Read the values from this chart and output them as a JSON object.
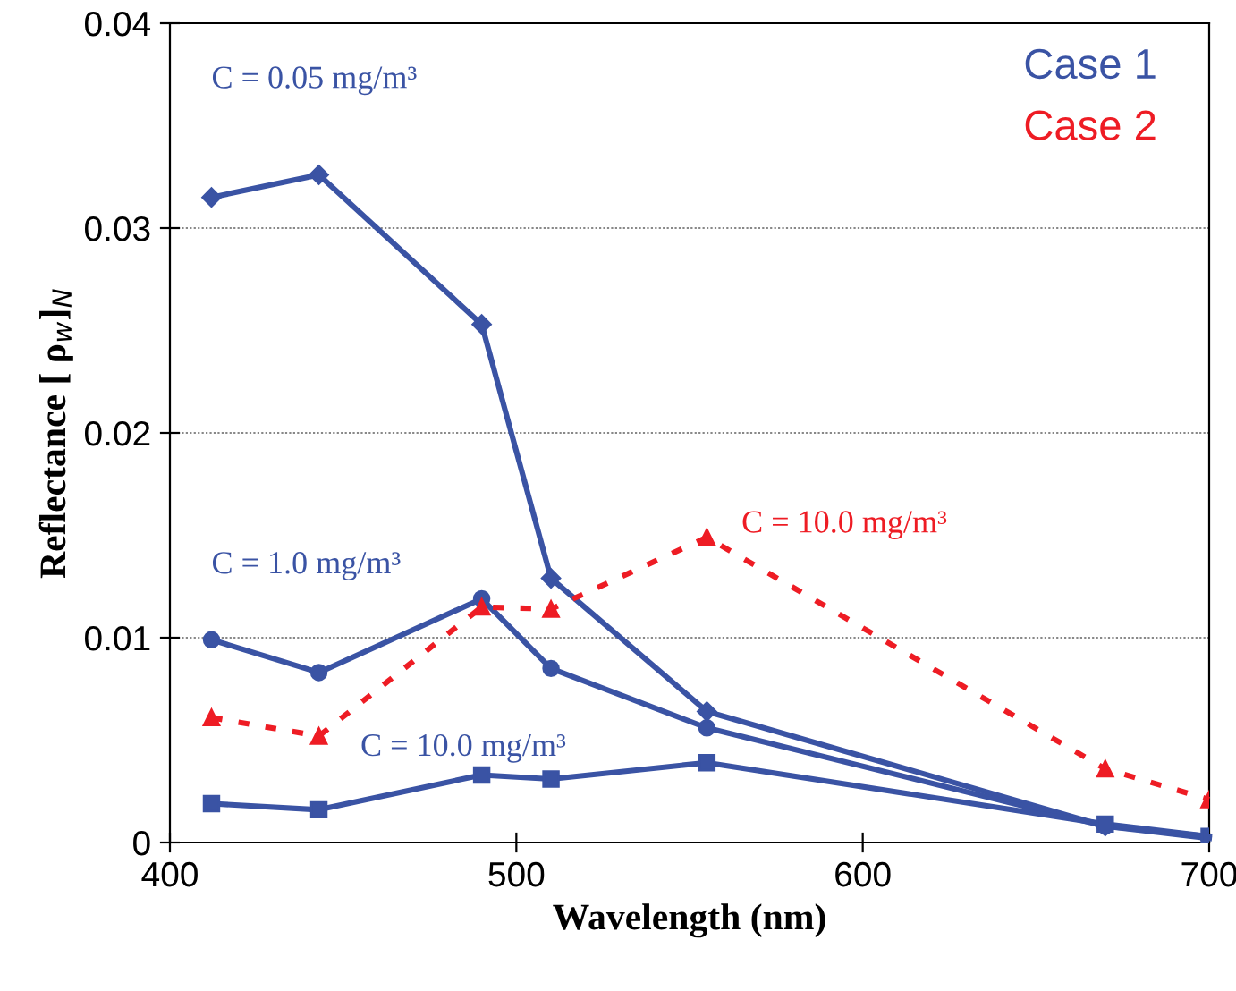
{
  "chart_data": {
    "type": "line",
    "xlabel": "Wavelength (nm)",
    "ylabel": "Reflectance [ ρ$_{w}$]$_{N}$",
    "xlim": [
      400,
      700
    ],
    "xticks": [
      400,
      500,
      600,
      700
    ],
    "ylim": [
      0,
      0.04
    ],
    "yticks": [
      0,
      0.01,
      0.02,
      0.03,
      0.04
    ],
    "grid": "y",
    "legend": false,
    "annotations": [
      "Case 1",
      "Case 2"
    ],
    "series": [
      {
        "name": "C = 0.05 mg/m³",
        "color": "#3a53a4",
        "marker": "diamond",
        "line_style": "solid",
        "x": [
          412,
          443,
          490,
          510,
          555,
          670,
          700
        ],
        "values": [
          0.0315,
          0.0326,
          0.0253,
          0.0129,
          0.0064,
          0.0008,
          0.0002
        ]
      },
      {
        "name": "C = 1.0 mg/m³",
        "color": "#3a53a4",
        "marker": "circle",
        "line_style": "solid",
        "x": [
          412,
          443,
          490,
          510,
          555,
          670,
          700
        ],
        "values": [
          0.0099,
          0.0083,
          0.0119,
          0.0085,
          0.0056,
          0.0008,
          0.0003
        ]
      },
      {
        "name": "C = 10.0 mg/m³",
        "color": "#3a53a4",
        "marker": "square",
        "line_style": "solid",
        "x": [
          412,
          443,
          490,
          510,
          555,
          670,
          700
        ],
        "values": [
          0.0019,
          0.0016,
          0.0033,
          0.0031,
          0.0039,
          0.0009,
          0.0003
        ]
      },
      {
        "name": "C = 10.0 mg/m³",
        "color": "#ee1c24",
        "marker": "triangle",
        "line_style": "dotted",
        "x": [
          412,
          443,
          490,
          510,
          555,
          670,
          700
        ],
        "values": [
          0.0061,
          0.0052,
          0.0115,
          0.0114,
          0.0149,
          0.0036,
          0.0021
        ]
      }
    ]
  }
}
